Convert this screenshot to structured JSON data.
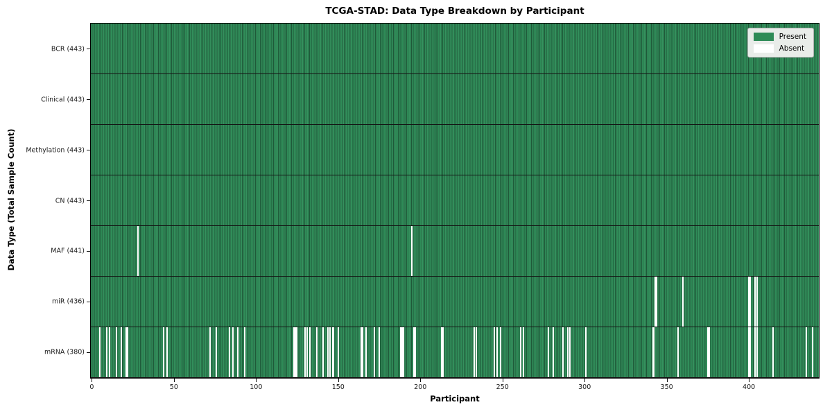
{
  "chart_data": {
    "type": "heatmap",
    "title": "TCGA-STAD: Data Type Breakdown by Participant",
    "xlabel": "Participant",
    "ylabel": "Data Type (Total Sample Count)",
    "n_participants": 443,
    "x_ticks": [
      0,
      50,
      100,
      150,
      200,
      250,
      300,
      350,
      400
    ],
    "legend_position": "upper right",
    "grid": false,
    "colors": {
      "present": "#2e8b57",
      "present_edge": "#1f5939",
      "absent": "#ffffff",
      "row_separator": "#141414",
      "legend_background": "#e9ece9"
    },
    "legend": [
      {
        "label": "Present",
        "color": "#2e8b57"
      },
      {
        "label": "Absent",
        "color": "#ffffff"
      }
    ],
    "rows": [
      {
        "name": "BCR",
        "label": "BCR (443)",
        "present_count": 443,
        "absent_participants": []
      },
      {
        "name": "Clinical",
        "label": "Clinical (443)",
        "present_count": 443,
        "absent_participants": []
      },
      {
        "name": "Methylation",
        "label": "Methylation (443)",
        "present_count": 443,
        "absent_participants": []
      },
      {
        "name": "CN",
        "label": "CN (443)",
        "present_count": 443,
        "absent_participants": []
      },
      {
        "name": "MAF",
        "label": "MAF (441)",
        "present_count": 441,
        "absent_participants": [
          28,
          195
        ]
      },
      {
        "name": "miR",
        "label": "miR (436)",
        "present_count": 436,
        "absent_participants": [
          343,
          344,
          360,
          400,
          401,
          404,
          405
        ]
      },
      {
        "name": "mRNA",
        "label": "mRNA (380)",
        "present_count": 380,
        "absent_participants": [
          5,
          9,
          11,
          15,
          18,
          21,
          22,
          44,
          46,
          72,
          76,
          84,
          86,
          89,
          93,
          123,
          124,
          125,
          130,
          131,
          133,
          137,
          141,
          144,
          145,
          147,
          150,
          164,
          165,
          167,
          172,
          175,
          188,
          189,
          190,
          196,
          197,
          213,
          214,
          233,
          234,
          245,
          247,
          249,
          261,
          263,
          278,
          281,
          287,
          290,
          291,
          301,
          342,
          357,
          375,
          376,
          400,
          401,
          404,
          405,
          415,
          435,
          439
        ]
      }
    ]
  }
}
